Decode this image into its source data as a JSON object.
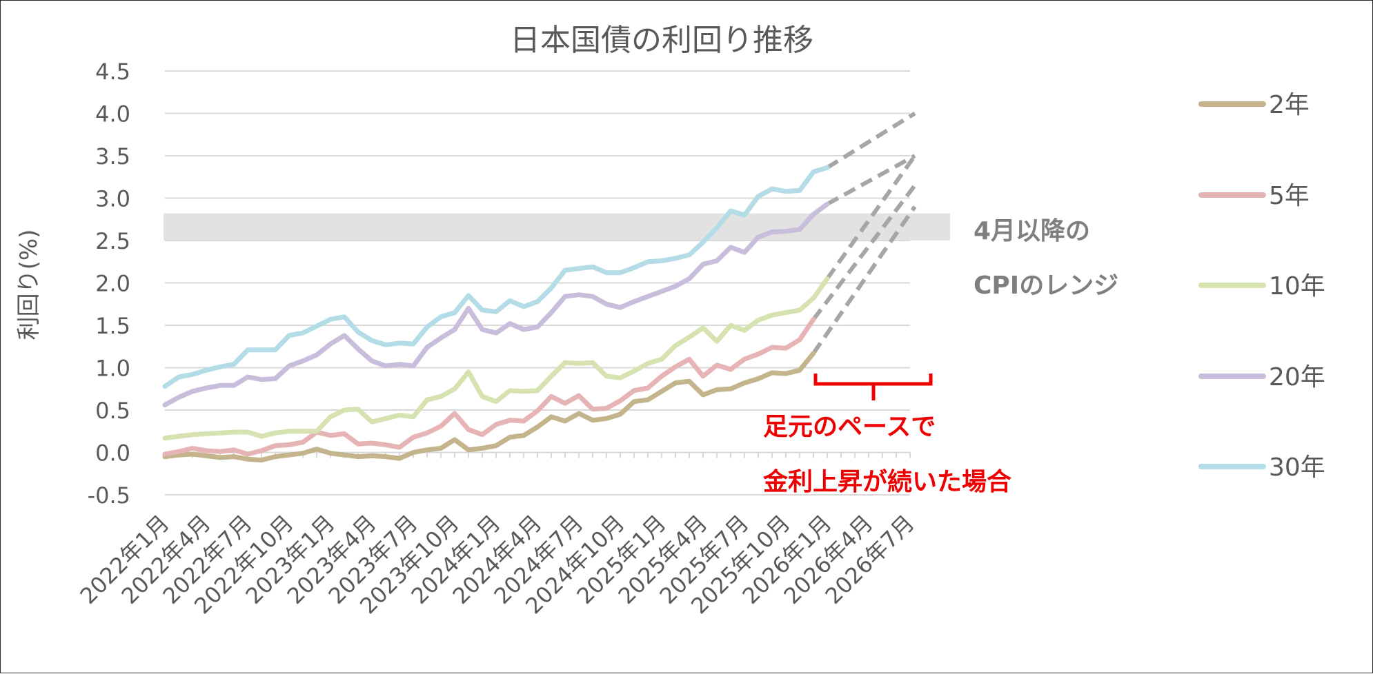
{
  "chart_data": {
    "type": "line",
    "title": "日本国債の利回り推移",
    "ylabel": "利回り(%)",
    "xlabel": "",
    "ylim": [
      -0.5,
      4.5
    ],
    "yticks": [
      "4.5",
      "4.0",
      "3.5",
      "3.0",
      "2.5",
      "2.0",
      "1.5",
      "1.0",
      "0.5",
      "0.0",
      "-0.5"
    ],
    "ytick_values": [
      4.5,
      4.0,
      3.5,
      3.0,
      2.5,
      2.0,
      1.5,
      1.0,
      0.5,
      0.0,
      -0.5
    ],
    "x_tick_labels": [
      "2022年1月",
      "2022年4月",
      "2022年7月",
      "2022年10月",
      "2023年1月",
      "2023年4月",
      "2023年7月",
      "2023年10月",
      "2024年1月",
      "2024年4月",
      "2024年7月",
      "2024年10月",
      "2025年1月",
      "2025年4月",
      "2025年7月",
      "2025年10月",
      "2026年1月",
      "2026年4月",
      "2026年7月"
    ],
    "grid": true,
    "legend_position": "right",
    "series": [
      {
        "name": "2年",
        "color": "#c4b48c",
        "values": [
          -0.05,
          -0.03,
          -0.02,
          -0.04,
          -0.06,
          -0.05,
          -0.08,
          -0.09,
          -0.05,
          -0.03,
          -0.01,
          0.04,
          -0.01,
          -0.03,
          -0.05,
          -0.04,
          -0.05,
          -0.07,
          0.0,
          0.03,
          0.05,
          0.15,
          0.03,
          0.05,
          0.08,
          0.18,
          0.2,
          0.3,
          0.42,
          0.37,
          0.46,
          0.38,
          0.4,
          0.45,
          0.6,
          0.62,
          0.72,
          0.82,
          0.84,
          0.68,
          0.74,
          0.75,
          0.82,
          0.87,
          0.94,
          0.93,
          0.97,
          1.17
        ],
        "projection": [
          1.17,
          2.9
        ]
      },
      {
        "name": "5年",
        "color": "#e6b4b4",
        "values": [
          -0.02,
          0.01,
          0.05,
          0.02,
          0.01,
          0.03,
          -0.02,
          0.02,
          0.08,
          0.09,
          0.12,
          0.24,
          0.2,
          0.22,
          0.1,
          0.11,
          0.09,
          0.06,
          0.18,
          0.23,
          0.31,
          0.46,
          0.27,
          0.21,
          0.33,
          0.38,
          0.37,
          0.49,
          0.66,
          0.58,
          0.67,
          0.51,
          0.52,
          0.61,
          0.73,
          0.76,
          0.9,
          1.01,
          1.1,
          0.9,
          1.03,
          0.98,
          1.1,
          1.16,
          1.24,
          1.23,
          1.33,
          1.57
        ],
        "projection": [
          1.57,
          3.15
        ]
      },
      {
        "name": "10年",
        "color": "#d6e2b0",
        "values": [
          0.17,
          0.19,
          0.21,
          0.22,
          0.23,
          0.24,
          0.24,
          0.19,
          0.23,
          0.25,
          0.25,
          0.25,
          0.42,
          0.5,
          0.51,
          0.36,
          0.4,
          0.44,
          0.42,
          0.62,
          0.66,
          0.75,
          0.95,
          0.66,
          0.6,
          0.73,
          0.72,
          0.73,
          0.9,
          1.06,
          1.05,
          1.06,
          0.9,
          0.88,
          0.96,
          1.05,
          1.1,
          1.26,
          1.36,
          1.47,
          1.31,
          1.5,
          1.44,
          1.56,
          1.62,
          1.65,
          1.68,
          1.82,
          2.05
        ],
        "projection": [
          2.05,
          3.5
        ]
      },
      {
        "name": "20年",
        "color": "#c8bedc",
        "values": [
          0.56,
          0.65,
          0.72,
          0.76,
          0.79,
          0.79,
          0.89,
          0.86,
          0.87,
          1.02,
          1.08,
          1.15,
          1.28,
          1.38,
          1.22,
          1.08,
          1.02,
          1.04,
          1.02,
          1.24,
          1.35,
          1.45,
          1.7,
          1.45,
          1.41,
          1.52,
          1.45,
          1.48,
          1.65,
          1.84,
          1.86,
          1.84,
          1.75,
          1.71,
          1.78,
          1.84,
          1.9,
          1.96,
          2.05,
          2.22,
          2.26,
          2.42,
          2.36,
          2.54,
          2.6,
          2.61,
          2.63,
          2.81,
          2.93
        ],
        "projection": [
          2.93,
          3.5
        ]
      },
      {
        "name": "30年",
        "color": "#b4dce6",
        "values": [
          0.78,
          0.89,
          0.92,
          0.97,
          1.01,
          1.04,
          1.21,
          1.21,
          1.21,
          1.38,
          1.41,
          1.49,
          1.57,
          1.6,
          1.42,
          1.32,
          1.27,
          1.29,
          1.28,
          1.48,
          1.6,
          1.65,
          1.85,
          1.68,
          1.66,
          1.79,
          1.72,
          1.78,
          1.94,
          2.15,
          2.17,
          2.19,
          2.12,
          2.12,
          2.18,
          2.25,
          2.26,
          2.29,
          2.33,
          2.48,
          2.65,
          2.85,
          2.8,
          3.02,
          3.11,
          3.08,
          3.09,
          3.31,
          3.36
        ],
        "projection": [
          3.36,
          4.0
        ]
      }
    ],
    "band": {
      "from": 2.5,
      "to": 2.82,
      "color": "#e2e2e2"
    },
    "band_label": [
      "4月以降の",
      "CPIのレンジ"
    ],
    "annotation": [
      "足元のペースで",
      "金利上昇が続いた場合"
    ],
    "colors": {
      "annotation": "#ee0000",
      "text": "#595959",
      "projection": "#a6a6a6",
      "grid": "#d9d9d9"
    }
  }
}
